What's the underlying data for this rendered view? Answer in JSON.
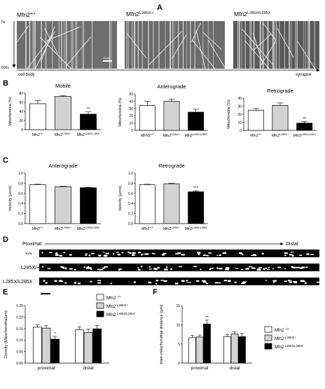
{
  "panel_letters": [
    "A",
    "B",
    "C",
    "D",
    "E",
    "F"
  ],
  "kymograph": {
    "titles": [
      {
        "base": "Mfn2",
        "sup": "+/+"
      },
      {
        "base": "Mfn2",
        "sup": "L285X/+"
      },
      {
        "base": "Mfn2",
        "sup": "L285X/L285X"
      }
    ],
    "time_start": "0s",
    "time_end": "600s",
    "cell_body": "cell body",
    "synapse": "synapse",
    "scale": "20µm"
  },
  "genotype_labels": [
    {
      "base": "Mfn2",
      "sup": "+/+"
    },
    {
      "base": "Mfn2",
      "sup": "L285X/+"
    },
    {
      "base": "Mfn2",
      "sup": "L285X/L285X"
    }
  ],
  "genotype_labels_alt": [
    {
      "base": "MFN2",
      "sup": "+/+"
    },
    {
      "base": "Mfn2",
      "sup": "L285X/+"
    },
    {
      "base": "Mfn2",
      "sup": "L285X/L285X"
    }
  ],
  "fills": [
    "#ffffff",
    "#d3d3d3",
    "#000000"
  ],
  "straightening": {
    "proximal": "Proximal",
    "distal": "Distal",
    "rows": [
      "+/+",
      "L285X/+",
      "L285X/L285X"
    ]
  },
  "chart_data": [
    {
      "panel": "B",
      "title": "Mobile",
      "type": "bar",
      "ylabel": "Mitochondria (%)",
      "ylim": [
        0,
        80
      ],
      "ticks": [
        0,
        20,
        40,
        60,
        80
      ],
      "categories": [
        "Mfn2+/+",
        "Mfn2L285X/+",
        "Mfn2L285X/L285X"
      ],
      "values": [
        57,
        73,
        34
      ],
      "errors": [
        7,
        2,
        5
      ],
      "labels": [
        "",
        "",
        "**"
      ]
    },
    {
      "panel": "B",
      "title": "Anterograde",
      "type": "bar",
      "ylabel": "Mitochondria (%)",
      "ylim": [
        0,
        50
      ],
      "ticks": [
        0,
        10,
        20,
        30,
        40,
        50
      ],
      "categories": [
        "MFN2+/+",
        "Mfn2L285X/+",
        "Mfn2L285X/L285X"
      ],
      "values": [
        34,
        40,
        25
      ],
      "errors": [
        6,
        3,
        4
      ],
      "labels": [
        "",
        "",
        ""
      ]
    },
    {
      "panel": "B",
      "title": "Retrograde",
      "type": "bar",
      "ylabel": "Mitochondria (%)",
      "ylim": [
        0,
        40
      ],
      "ticks": [
        0,
        10,
        20,
        30,
        40
      ],
      "categories": [
        "Mfn2+/+",
        "Mfn2L285X/+",
        "Mfn2L285X/L285X"
      ],
      "values": [
        25,
        31,
        9
      ],
      "errors": [
        2,
        3,
        2
      ],
      "labels": [
        "",
        "",
        "**"
      ]
    },
    {
      "panel": "C",
      "title": "Anterograde",
      "type": "bar",
      "ylabel": "Velocity (µm/s)",
      "ylim": [
        0,
        1
      ],
      "ticks": [
        0,
        0.2,
        0.4,
        0.6,
        0.8,
        1.0
      ],
      "ticklabels": [
        "0.0",
        "0.2",
        "0.4",
        "0.6",
        "0.8",
        "1.0"
      ],
      "categories": [
        "Mfn2+/+",
        "Mfn2L285X/+",
        "Mfn2L285X/L285X"
      ],
      "values": [
        0.77,
        0.73,
        0.71
      ],
      "errors": [
        0.01,
        0.01,
        0.01
      ],
      "labels": [
        "",
        "",
        ""
      ]
    },
    {
      "panel": "C",
      "title": "Retrograde",
      "type": "bar",
      "ylabel": "Velocity (µm/s)",
      "ylim": [
        0,
        1
      ],
      "ticks": [
        0,
        0.2,
        0.4,
        0.6,
        0.8,
        1.0
      ],
      "ticklabels": [
        "0.0",
        "0.2",
        "0.4",
        "0.6",
        "0.8",
        "1.0"
      ],
      "categories": [
        "Mfn2+/+",
        "Mfn2L285X/+",
        "Mfn2L285X/L285X"
      ],
      "values": [
        0.77,
        0.79,
        0.63
      ],
      "errors": [
        0.01,
        0.01,
        0.02
      ],
      "labels": [
        "",
        "",
        "***"
      ]
    },
    {
      "panel": "E",
      "title": "",
      "type": "bar",
      "ylabel": "Density (Mitochondria/µm)",
      "ylim": [
        0,
        0.25
      ],
      "ticks": [
        0,
        0.05,
        0.1,
        0.15,
        0.2,
        0.25
      ],
      "ticklabels": [
        "0.00",
        "0.05",
        "0.10",
        "0.15",
        "0.20",
        "0.25"
      ],
      "categories": [
        "proximal",
        "distal"
      ],
      "series": [
        {
          "name": "Mfn2 +/+",
          "values": [
            0.156,
            0.145
          ],
          "errors": [
            0.01,
            0.012
          ],
          "labels": [
            "",
            ""
          ]
        },
        {
          "name": "Mfn2 L285X/+",
          "values": [
            0.152,
            0.133
          ],
          "errors": [
            0.01,
            0.015
          ],
          "labels": [
            "",
            ""
          ]
        },
        {
          "name": "Mfn2 L285X/L285X",
          "values": [
            0.104,
            0.149
          ],
          "errors": [
            0.012,
            0.014
          ],
          "labels": [
            "*",
            ""
          ]
        }
      ]
    },
    {
      "panel": "F",
      "title": "",
      "type": "bar",
      "ylabel": "Inter-mitochondrial distance (µm)",
      "ylim": [
        0,
        15
      ],
      "ticks": [
        0,
        5,
        10,
        15
      ],
      "ticklabels": [
        "0",
        "5",
        "10",
        "15"
      ],
      "categories": [
        "proximal",
        "distal"
      ],
      "series": [
        {
          "name": "Mfn2 +/+",
          "values": [
            6.6,
            6.9
          ],
          "errors": [
            0.6,
            0.5
          ],
          "labels": [
            "",
            ""
          ]
        },
        {
          "name": "Mfn2 L285X/+",
          "values": [
            6.8,
            7.6
          ],
          "errors": [
            0.5,
            0.6
          ],
          "labels": [
            "",
            ""
          ]
        },
        {
          "name": "Mfn2 L285X/L285X",
          "values": [
            10.2,
            6.9
          ],
          "errors": [
            1.0,
            0.8
          ],
          "labels": [
            "**",
            ""
          ]
        }
      ]
    }
  ]
}
